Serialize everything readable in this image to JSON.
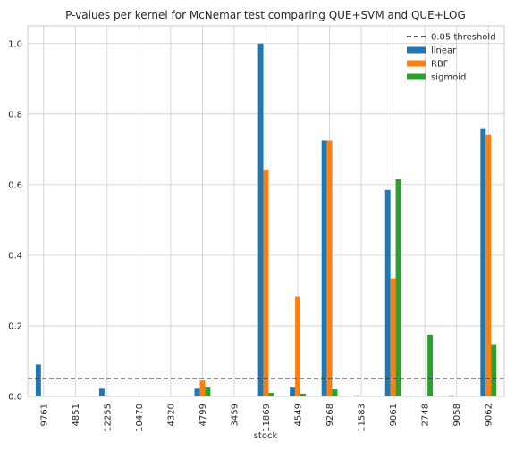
{
  "chart_data": {
    "type": "bar",
    "title": "P-values per kernel for McNemar test comparing QUE+SVM and QUE+LOG",
    "xlabel": "stock",
    "ylabel": "",
    "categories": [
      "9761",
      "4851",
      "12255",
      "10470",
      "4320",
      "4799",
      "3459",
      "11869",
      "4549",
      "9268",
      "11583",
      "9061",
      "2748",
      "9058",
      "9062"
    ],
    "ylim": [
      0,
      1.05
    ],
    "yticks": [
      "0.0",
      "0.2",
      "0.4",
      "0.6",
      "0.8",
      "1.0"
    ],
    "ytick_values": [
      0,
      0.2,
      0.4,
      0.6,
      0.8,
      1.0
    ],
    "threshold": {
      "value": 0.05,
      "label": "0.05 threshold",
      "color": "#262626",
      "style": "dashed"
    },
    "series": [
      {
        "name": "linear",
        "color": "#1f77b4",
        "values": [
          0.09,
          0,
          0.022,
          0,
          0,
          0.022,
          0,
          1.0,
          0.025,
          0.725,
          0.003,
          0.585,
          0,
          0.003,
          0.76
        ]
      },
      {
        "name": "RBF",
        "color": "#ff7f0e",
        "values": [
          0,
          0,
          0.002,
          0,
          0,
          0.045,
          0,
          0.643,
          0.282,
          0.725,
          0,
          0.335,
          0,
          0,
          0.742
        ]
      },
      {
        "name": "sigmoid",
        "color": "#2ca02c",
        "values": [
          0,
          0,
          0,
          0,
          0,
          0.025,
          0,
          0.01,
          0.008,
          0.02,
          0,
          0.615,
          0.175,
          0,
          0.148
        ]
      }
    ],
    "grid": true,
    "legend_position": "top-right",
    "background": "#ffffff",
    "grid_color": "#cccccc"
  }
}
